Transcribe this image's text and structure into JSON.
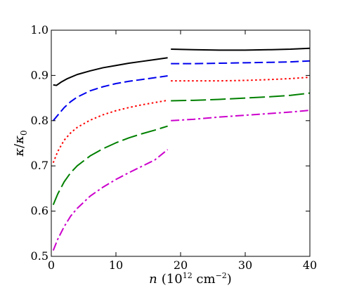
{
  "chart_data": {
    "type": "line",
    "xlabel": "n",
    "xlabel_units": "(10",
    "xlabel_units_exp": "12",
    "xlabel_units_tail": " cm",
    "xlabel_units_exp2": "−2",
    "xlabel_units_close": ")",
    "ylabel_kappa": "κ",
    "ylabel_slash": "/",
    "ylabel_kappa0": "κ",
    "ylabel_sub": "0",
    "xlim": [
      0,
      40
    ],
    "ylim": [
      0.5,
      1.0
    ],
    "xticks": [
      0,
      10,
      20,
      30,
      40
    ],
    "yticks": [
      0.5,
      0.6,
      0.7,
      0.8,
      0.9,
      1.0
    ],
    "xtick_labels": [
      "0",
      "10",
      "20",
      "30",
      "40"
    ],
    "ytick_labels": [
      "0.5",
      "0.6",
      "0.7",
      "0.8",
      "0.9",
      "1.0"
    ],
    "grid": false,
    "series": [
      {
        "color": "#000000",
        "dash": "solid",
        "segments": [
          [
            [
              0.3,
              0.879
            ],
            [
              0.8,
              0.878
            ],
            [
              1.5,
              0.885
            ],
            [
              2.5,
              0.893
            ],
            [
              4,
              0.902
            ],
            [
              6,
              0.91
            ],
            [
              8,
              0.917
            ],
            [
              10,
              0.922
            ],
            [
              12,
              0.927
            ],
            [
              14,
              0.931
            ],
            [
              16,
              0.935
            ],
            [
              18,
              0.939
            ]
          ],
          [
            [
              18.5,
              0.958
            ],
            [
              22,
              0.957
            ],
            [
              26,
              0.956
            ],
            [
              30,
              0.956
            ],
            [
              34,
              0.957
            ],
            [
              37,
              0.958
            ],
            [
              40,
              0.96
            ]
          ]
        ]
      },
      {
        "color": "#0000ee",
        "dash": "longdash",
        "segments": [
          [
            [
              0.3,
              0.8
            ],
            [
              1,
              0.812
            ],
            [
              2,
              0.829
            ],
            [
              3,
              0.842
            ],
            [
              4,
              0.852
            ],
            [
              6,
              0.866
            ],
            [
              8,
              0.875
            ],
            [
              10,
              0.882
            ],
            [
              12,
              0.887
            ],
            [
              14,
              0.891
            ],
            [
              16,
              0.895
            ],
            [
              18,
              0.899
            ]
          ],
          [
            [
              18.5,
              0.926
            ],
            [
              22,
              0.926
            ],
            [
              26,
              0.927
            ],
            [
              30,
              0.928
            ],
            [
              34,
              0.929
            ],
            [
              37,
              0.93
            ],
            [
              40,
              0.932
            ]
          ]
        ]
      },
      {
        "color": "#ff0000",
        "dash": "dotted",
        "segments": [
          [
            [
              0.3,
              0.707
            ],
            [
              1,
              0.732
            ],
            [
              2,
              0.757
            ],
            [
              3,
              0.773
            ],
            [
              4,
              0.785
            ],
            [
              6,
              0.801
            ],
            [
              8,
              0.813
            ],
            [
              10,
              0.822
            ],
            [
              12,
              0.829
            ],
            [
              14,
              0.835
            ],
            [
              16,
              0.84
            ],
            [
              18,
              0.845
            ]
          ],
          [
            [
              18.5,
              0.888
            ],
            [
              22,
              0.888
            ],
            [
              26,
              0.888
            ],
            [
              30,
              0.889
            ],
            [
              34,
              0.891
            ],
            [
              37,
              0.893
            ],
            [
              40,
              0.896
            ]
          ]
        ]
      },
      {
        "color": "#008000",
        "dash": "dashdash",
        "segments": [
          [
            [
              0.3,
              0.614
            ],
            [
              1,
              0.638
            ],
            [
              2,
              0.665
            ],
            [
              3,
              0.685
            ],
            [
              4,
              0.7
            ],
            [
              6,
              0.722
            ],
            [
              8,
              0.738
            ],
            [
              10,
              0.751
            ],
            [
              12,
              0.762
            ],
            [
              14,
              0.771
            ],
            [
              16,
              0.779
            ],
            [
              18,
              0.788
            ]
          ],
          [
            [
              18.5,
              0.844
            ],
            [
              22,
              0.845
            ],
            [
              26,
              0.847
            ],
            [
              30,
              0.85
            ],
            [
              34,
              0.853
            ],
            [
              37,
              0.856
            ],
            [
              40,
              0.861
            ]
          ]
        ]
      },
      {
        "color": "#cc00cc",
        "dash": "dashdot",
        "segments": [
          [
            [
              0.3,
              0.513
            ],
            [
              1,
              0.538
            ],
            [
              2,
              0.566
            ],
            [
              3,
              0.589
            ],
            [
              4,
              0.606
            ],
            [
              6,
              0.633
            ],
            [
              8,
              0.653
            ],
            [
              10,
              0.67
            ],
            [
              12,
              0.685
            ],
            [
              14,
              0.699
            ],
            [
              16,
              0.713
            ],
            [
              18,
              0.736
            ]
          ],
          [
            [
              18.5,
              0.8
            ],
            [
              22,
              0.803
            ],
            [
              26,
              0.808
            ],
            [
              30,
              0.812
            ],
            [
              34,
              0.816
            ],
            [
              37,
              0.819
            ],
            [
              40,
              0.823
            ]
          ]
        ]
      }
    ]
  }
}
